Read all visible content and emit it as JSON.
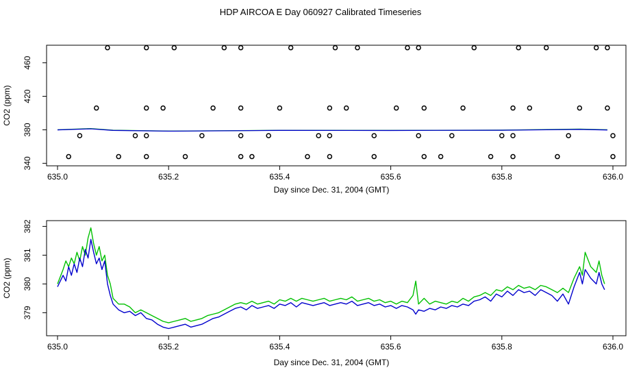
{
  "title": "HDP AIRCOA E  Day 060927  Calibrated Timeseries",
  "colors": {
    "green": "#00c000",
    "blue": "#0000cc",
    "axis": "#000000"
  },
  "chart_data": [
    {
      "type": "scatter",
      "xlabel": "Day since Dec. 31, 2004 (GMT)",
      "ylabel": "CO2 (ppm)",
      "xlim": [
        635.0,
        636.0
      ],
      "ylim": [
        337,
        481
      ],
      "xticks": [
        "635.0",
        "635.2",
        "635.4",
        "635.6",
        "635.8",
        "636.0"
      ],
      "yticks": [
        "340",
        "380",
        "420",
        "460"
      ],
      "ytick_values": [
        340,
        380,
        420,
        460
      ],
      "xtick_values": [
        635.0,
        635.2,
        635.4,
        635.6,
        635.8,
        636.0
      ],
      "points_high_y": 478,
      "points_high_x": [
        635.09,
        635.16,
        635.21,
        635.3,
        635.33,
        635.42,
        635.5,
        635.54,
        635.63,
        635.65,
        635.75,
        635.83,
        635.88,
        635.97,
        635.99
      ],
      "points_mid_y": 406,
      "points_mid_x": [
        635.07,
        635.16,
        635.19,
        635.28,
        635.33,
        635.4,
        635.49,
        635.52,
        635.61,
        635.66,
        635.73,
        635.82,
        635.85,
        635.94,
        635.99
      ],
      "points_low1_y": 373,
      "points_low1_x": [
        635.04,
        635.14,
        635.16,
        635.26,
        635.33,
        635.38,
        635.47,
        635.49,
        635.57,
        635.65,
        635.71,
        635.8,
        635.82,
        635.92,
        636.0
      ],
      "points_low2_y": 348,
      "points_low2_x": [
        635.02,
        635.11,
        635.16,
        635.23,
        635.33,
        635.35,
        635.45,
        635.49,
        635.57,
        635.66,
        635.69,
        635.78,
        635.82,
        635.9,
        636.0
      ],
      "series": [
        {
          "color": "green",
          "values": [
            [
              635.0,
              380
            ],
            [
              635.06,
              381.5
            ],
            [
              635.1,
              379.5
            ],
            [
              635.2,
              378.5
            ],
            [
              635.4,
              379.4
            ],
            [
              635.6,
              379.3
            ],
            [
              635.8,
              379.6
            ],
            [
              635.94,
              380.9
            ],
            [
              635.99,
              380.0
            ]
          ]
        },
        {
          "color": "blue",
          "values": [
            [
              635.0,
              379.9
            ],
            [
              635.06,
              381.2
            ],
            [
              635.1,
              379.3
            ],
            [
              635.2,
              378.4
            ],
            [
              635.4,
              379.3
            ],
            [
              635.6,
              379.2
            ],
            [
              635.8,
              379.5
            ],
            [
              635.94,
              380.5
            ],
            [
              635.99,
              379.8
            ]
          ]
        }
      ]
    },
    {
      "type": "line",
      "xlabel": "Day since Dec. 31, 2004 (GMT)",
      "ylabel": "CO2 (ppm)",
      "xlim": [
        635.0,
        636.0
      ],
      "ylim": [
        378.2,
        382.2
      ],
      "xticks": [
        "635.0",
        "635.2",
        "635.4",
        "635.6",
        "635.8",
        "636.0"
      ],
      "xtick_values": [
        635.0,
        635.2,
        635.4,
        635.6,
        635.8,
        636.0
      ],
      "yticks": [
        "379",
        "380",
        "381",
        "382"
      ],
      "ytick_values": [
        379,
        380,
        381,
        382
      ],
      "series": [
        {
          "color": "green",
          "x": [
            635.0,
            635.01,
            635.015,
            635.02,
            635.025,
            635.03,
            635.035,
            635.04,
            635.045,
            635.05,
            635.055,
            635.06,
            635.065,
            635.07,
            635.075,
            635.08,
            635.085,
            635.09,
            635.095,
            635.1,
            635.11,
            635.12,
            635.13,
            635.14,
            635.15,
            635.16,
            635.17,
            635.18,
            635.19,
            635.2,
            635.21,
            635.22,
            635.23,
            635.24,
            635.25,
            635.26,
            635.27,
            635.28,
            635.29,
            635.3,
            635.31,
            635.32,
            635.33,
            635.34,
            635.35,
            635.36,
            635.37,
            635.38,
            635.39,
            635.4,
            635.41,
            635.42,
            635.43,
            635.44,
            635.45,
            635.46,
            635.47,
            635.48,
            635.49,
            635.5,
            635.51,
            635.52,
            635.53,
            635.54,
            635.55,
            635.56,
            635.57,
            635.58,
            635.59,
            635.6,
            635.61,
            635.62,
            635.63,
            635.64,
            635.645,
            635.65,
            635.66,
            635.67,
            635.68,
            635.69,
            635.7,
            635.71,
            635.72,
            635.73,
            635.74,
            635.75,
            635.76,
            635.77,
            635.78,
            635.79,
            635.8,
            635.81,
            635.82,
            635.83,
            635.84,
            635.85,
            635.86,
            635.87,
            635.88,
            635.89,
            635.9,
            635.91,
            635.92,
            635.93,
            635.94,
            635.945,
            635.95,
            635.96,
            635.97,
            635.975,
            635.98,
            635.985
          ],
          "y": [
            380.0,
            380.5,
            380.8,
            380.6,
            380.9,
            380.7,
            381.1,
            380.8,
            381.3,
            381.0,
            381.6,
            381.95,
            381.4,
            381.0,
            381.3,
            380.8,
            381.0,
            380.3,
            380.0,
            379.5,
            379.3,
            379.3,
            379.2,
            379.0,
            379.1,
            379.0,
            378.9,
            378.8,
            378.7,
            378.65,
            378.7,
            378.75,
            378.8,
            378.7,
            378.75,
            378.8,
            378.9,
            378.95,
            379.0,
            379.1,
            379.2,
            379.3,
            379.35,
            379.3,
            379.4,
            379.3,
            379.35,
            379.4,
            379.3,
            379.45,
            379.4,
            379.5,
            379.4,
            379.5,
            379.45,
            379.4,
            379.45,
            379.5,
            379.4,
            379.45,
            379.5,
            379.45,
            379.55,
            379.4,
            379.45,
            379.5,
            379.4,
            379.45,
            379.35,
            379.4,
            379.3,
            379.4,
            379.35,
            379.6,
            380.1,
            379.3,
            379.5,
            379.3,
            379.4,
            379.35,
            379.3,
            379.4,
            379.35,
            379.5,
            379.4,
            379.55,
            379.6,
            379.7,
            379.6,
            379.8,
            379.75,
            379.9,
            379.8,
            379.95,
            379.85,
            379.9,
            379.8,
            379.95,
            379.9,
            379.8,
            379.7,
            379.85,
            379.7,
            380.2,
            380.6,
            380.3,
            381.1,
            380.6,
            380.4,
            380.8,
            380.3,
            380.0
          ]
        },
        {
          "color": "blue",
          "x": [
            635.0,
            635.01,
            635.015,
            635.02,
            635.025,
            635.03,
            635.035,
            635.04,
            635.045,
            635.05,
            635.055,
            635.06,
            635.065,
            635.07,
            635.075,
            635.08,
            635.085,
            635.09,
            635.095,
            635.1,
            635.11,
            635.12,
            635.13,
            635.14,
            635.15,
            635.16,
            635.17,
            635.18,
            635.19,
            635.2,
            635.21,
            635.22,
            635.23,
            635.24,
            635.25,
            635.26,
            635.27,
            635.28,
            635.29,
            635.3,
            635.31,
            635.32,
            635.33,
            635.34,
            635.35,
            635.36,
            635.37,
            635.38,
            635.39,
            635.4,
            635.41,
            635.42,
            635.43,
            635.44,
            635.45,
            635.46,
            635.47,
            635.48,
            635.49,
            635.5,
            635.51,
            635.52,
            635.53,
            635.54,
            635.55,
            635.56,
            635.57,
            635.58,
            635.59,
            635.6,
            635.61,
            635.62,
            635.63,
            635.64,
            635.645,
            635.65,
            635.66,
            635.67,
            635.68,
            635.69,
            635.7,
            635.71,
            635.72,
            635.73,
            635.74,
            635.75,
            635.76,
            635.77,
            635.78,
            635.79,
            635.8,
            635.81,
            635.82,
            635.83,
            635.84,
            635.85,
            635.86,
            635.87,
            635.88,
            635.89,
            635.9,
            635.91,
            635.92,
            635.93,
            635.94,
            635.945,
            635.95,
            635.96,
            635.97,
            635.975,
            635.98,
            635.985
          ],
          "y": [
            379.9,
            380.3,
            380.1,
            380.6,
            380.3,
            380.7,
            380.4,
            380.9,
            380.6,
            381.2,
            380.9,
            381.55,
            381.1,
            380.7,
            380.9,
            380.5,
            380.8,
            380.0,
            379.6,
            379.3,
            379.1,
            379.0,
            379.05,
            378.9,
            379.0,
            378.8,
            378.75,
            378.6,
            378.5,
            378.45,
            378.5,
            378.55,
            378.6,
            378.5,
            378.55,
            378.6,
            378.7,
            378.8,
            378.85,
            378.95,
            379.05,
            379.15,
            379.2,
            379.1,
            379.25,
            379.15,
            379.2,
            379.25,
            379.15,
            379.3,
            379.25,
            379.35,
            379.2,
            379.35,
            379.3,
            379.25,
            379.3,
            379.35,
            379.25,
            379.3,
            379.35,
            379.3,
            379.4,
            379.25,
            379.3,
            379.35,
            379.25,
            379.3,
            379.2,
            379.25,
            379.15,
            379.25,
            379.2,
            379.1,
            378.95,
            379.1,
            379.05,
            379.15,
            379.1,
            379.2,
            379.15,
            379.25,
            379.2,
            379.3,
            379.25,
            379.4,
            379.45,
            379.55,
            379.4,
            379.65,
            379.55,
            379.75,
            379.6,
            379.8,
            379.7,
            379.75,
            379.6,
            379.8,
            379.7,
            379.6,
            379.4,
            379.65,
            379.3,
            379.9,
            380.4,
            380.0,
            380.5,
            380.2,
            380.0,
            380.4,
            380.0,
            379.8
          ]
        }
      ]
    }
  ]
}
